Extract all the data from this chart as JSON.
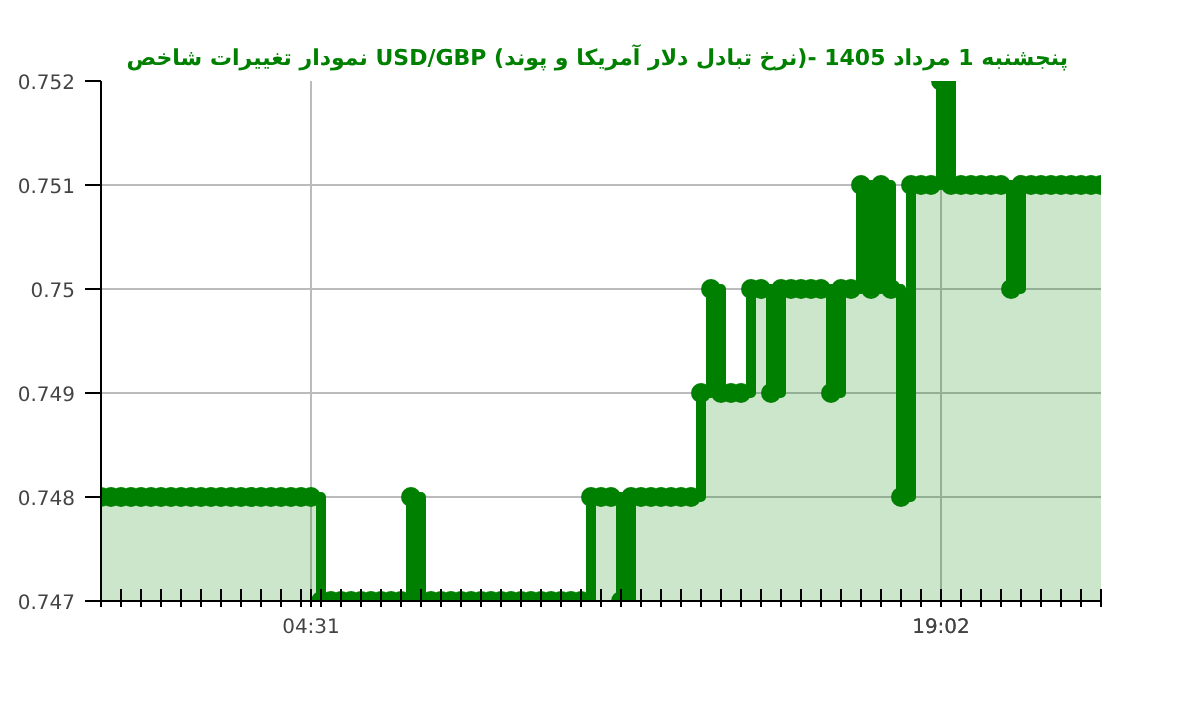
{
  "chart_data": {
    "type": "step",
    "title": "نمودار تغییرات شاخص USD/GBP (نرخ تبادل دلار آمریکا و پوند)- پنجشنبه  1 مرداد 1405",
    "categories": [
      null,
      null,
      null,
      null,
      null,
      null,
      null,
      null,
      null,
      null,
      null,
      null,
      null,
      null,
      null,
      null,
      null,
      null,
      null,
      null,
      null,
      "04:31",
      null,
      null,
      null,
      null,
      null,
      null,
      null,
      null,
      null,
      null,
      null,
      null,
      null,
      null,
      null,
      null,
      null,
      null,
      null,
      null,
      null,
      null,
      null,
      null,
      null,
      null,
      null,
      null,
      null,
      null,
      null,
      null,
      null,
      null,
      null,
      null,
      null,
      null,
      null,
      null,
      null,
      null,
      null,
      null,
      null,
      null,
      null,
      null,
      null,
      null,
      null,
      null,
      null,
      null,
      null,
      null,
      null,
      null,
      null,
      null,
      null,
      null,
      "19:02",
      null,
      null,
      null,
      null,
      null,
      null,
      null,
      null,
      null,
      null,
      null,
      null,
      null,
      null,
      null,
      null
    ],
    "series": [
      {
        "color": "#008000",
        "values": [
          0.748,
          0.748,
          0.748,
          0.748,
          0.748,
          0.748,
          0.748,
          0.748,
          0.748,
          0.748,
          0.748,
          0.748,
          0.748,
          0.748,
          0.748,
          0.748,
          0.748,
          0.748,
          0.748,
          0.748,
          0.748,
          0.748,
          0.747,
          0.747,
          0.747,
          0.747,
          0.747,
          0.747,
          0.747,
          0.747,
          0.747,
          0.748,
          0.747,
          0.747,
          0.747,
          0.747,
          0.747,
          0.747,
          0.747,
          0.747,
          0.747,
          0.747,
          0.747,
          0.747,
          0.747,
          0.747,
          0.747,
          0.747,
          0.747,
          0.748,
          0.748,
          0.748,
          0.747,
          0.748,
          0.748,
          0.748,
          0.748,
          0.748,
          0.748,
          0.748,
          0.749,
          0.75,
          0.749,
          0.749,
          0.749,
          0.75,
          0.75,
          0.749,
          0.75,
          0.75,
          0.75,
          0.75,
          0.75,
          0.749,
          0.75,
          0.75,
          0.751,
          0.75,
          0.751,
          0.75,
          0.748,
          0.751,
          0.751,
          0.751,
          0.752,
          0.751,
          0.751,
          0.751,
          0.751,
          0.751,
          0.751,
          0.75,
          0.751,
          0.751,
          0.751,
          0.751,
          0.751,
          0.751,
          0.751,
          0.751,
          0.751
        ]
      }
    ],
    "ylim": [
      0.747,
      0.752
    ],
    "yticks": [
      0.747,
      0.748,
      0.749,
      0.75,
      0.751,
      0.752
    ],
    "grid": true,
    "marker": "circle"
  }
}
